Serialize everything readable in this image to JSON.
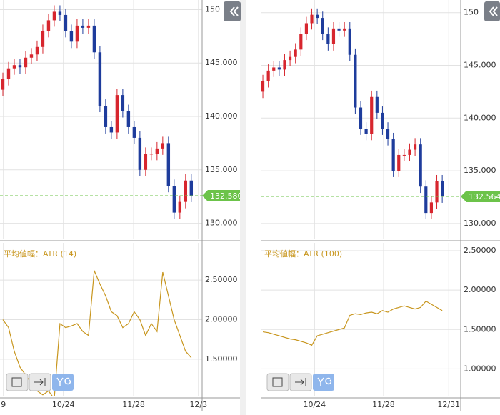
{
  "chart_data": [
    {
      "type": "candlestick",
      "open": [
        142.5,
        143.5,
        144.5,
        144.8,
        144.6,
        145.5,
        145.8,
        146.5,
        148,
        149,
        149.8,
        149.5,
        148,
        147,
        148.5,
        148.3,
        148.5,
        146,
        141,
        139,
        138.5,
        142,
        140.5,
        139,
        138,
        135,
        136.5,
        136.5,
        137,
        137.5,
        133.5,
        131,
        132,
        134
      ],
      "high": [
        144.1,
        145.1,
        145.4,
        145.4,
        146.1,
        146.4,
        147.1,
        148.6,
        149.6,
        150.4,
        150.4,
        150.1,
        148.6,
        149.1,
        149.1,
        149.1,
        149.1,
        146.6,
        141.6,
        139.6,
        142.6,
        142.6,
        141.1,
        139.6,
        138.6,
        137.1,
        137.1,
        137.6,
        138.1,
        138.1,
        134.1,
        132.6,
        134.6,
        134.6
      ],
      "low": [
        141.9,
        142.9,
        143.9,
        144.0,
        144.0,
        144.9,
        145.2,
        145.9,
        147.4,
        148.4,
        148.9,
        147.4,
        146.4,
        146.4,
        147.7,
        147.7,
        145.4,
        140.4,
        138.4,
        137.9,
        137.9,
        139.9,
        138.4,
        137.4,
        134.4,
        134.4,
        135.9,
        135.9,
        136.4,
        132.9,
        130.4,
        130.4,
        131.4,
        131.98
      ],
      "close": [
        143.5,
        144.5,
        144.8,
        144.6,
        145.5,
        145.8,
        146.5,
        148,
        149,
        149.8,
        149.5,
        148,
        147,
        148.5,
        148.3,
        148.5,
        146,
        141,
        139,
        138.5,
        142,
        140.5,
        139,
        138,
        135,
        136.5,
        136.5,
        137,
        137.5,
        133.5,
        131,
        132,
        134,
        132.58
      ],
      "last_label": "132.580",
      "up_color": "#d7262e",
      "down_color": "#1e3c9c",
      "xlim": [
        -0.5,
        34.9
      ],
      "ylim": [
        128.5,
        150.9
      ],
      "yticks": [
        150,
        {
          "value": 145,
          "label": "145.000"
        },
        {
          "value": 140,
          "label": "140.000"
        },
        {
          "value": 135,
          "label": "135.000"
        },
        {
          "value": 130,
          "label": "130.000"
        }
      ],
      "xticks": [
        {
          "value": 0.1,
          "label": "9"
        },
        {
          "value": 10.6,
          "label": "10/24"
        },
        {
          "value": 22.9,
          "label": "11/28"
        },
        {
          "value": 34.25,
          "label": "12/3"
        }
      ],
      "grid": true
    },
    {
      "type": "line",
      "title": "平均値幅：ATR (14)",
      "color": "#c8961e",
      "values": [
        2.0,
        1.9,
        1.6,
        1.4,
        1.3,
        1.2,
        1.1,
        1.05,
        1.1,
        1.0,
        1.95,
        1.9,
        1.92,
        1.95,
        1.85,
        1.8,
        2.62,
        2.45,
        2.3,
        2.1,
        2.05,
        1.9,
        1.95,
        2.1,
        2.0,
        1.8,
        1.95,
        1.85,
        2.6,
        2.3,
        2.0,
        1.8,
        1.6,
        1.52
      ],
      "xlim": [
        -0.5,
        34.9
      ],
      "ylim": [
        1.03,
        2.97
      ],
      "yticks": [
        {
          "value": 2.5,
          "label": "2.50000"
        },
        {
          "value": 2.0,
          "label": "2.00000"
        },
        {
          "value": 1.5,
          "label": "1.50000"
        }
      ]
    },
    {
      "type": "candlestick",
      "open": [
        142.5,
        143.5,
        144.5,
        144.8,
        144.6,
        145.5,
        145.8,
        146.5,
        148,
        149,
        149.8,
        149.5,
        148,
        147,
        148.5,
        148.3,
        148.5,
        146,
        141,
        139,
        138.5,
        142,
        140.5,
        139,
        138,
        135,
        136.5,
        136.5,
        137,
        137.5,
        133.5,
        131,
        132,
        134
      ],
      "high": [
        144.1,
        145.1,
        145.4,
        145.4,
        146.1,
        146.4,
        147.1,
        148.6,
        149.6,
        150.4,
        150.4,
        150.1,
        148.6,
        149.1,
        149.1,
        149.1,
        149.1,
        146.6,
        141.6,
        139.6,
        142.6,
        142.6,
        141.1,
        139.6,
        138.6,
        137.1,
        137.1,
        137.6,
        138.1,
        138.1,
        134.1,
        132.6,
        134.6,
        134.6
      ],
      "low": [
        141.9,
        142.9,
        143.9,
        144.0,
        144.0,
        144.9,
        145.2,
        145.9,
        147.4,
        148.4,
        148.9,
        147.4,
        146.4,
        146.4,
        147.7,
        147.7,
        145.4,
        140.4,
        138.4,
        137.9,
        137.9,
        139.9,
        138.4,
        137.4,
        134.4,
        134.4,
        135.9,
        135.9,
        136.4,
        132.9,
        130.4,
        130.4,
        131.4,
        131.96
      ],
      "close": [
        143.5,
        144.5,
        144.8,
        144.6,
        145.5,
        145.8,
        146.5,
        148,
        149,
        149.8,
        149.5,
        148,
        147,
        148.5,
        148.3,
        148.5,
        146,
        141,
        139,
        138.5,
        142,
        140.5,
        139,
        138,
        135,
        136.5,
        136.5,
        137,
        137.5,
        133.5,
        131,
        132,
        134,
        132.564
      ],
      "last_label": "132.564",
      "up_color": "#d7262e",
      "down_color": "#1e3c9c",
      "xlim": [
        -0.4,
        36.4
      ],
      "ylim": [
        128.5,
        151.2
      ],
      "yticks": [
        150,
        {
          "value": 145,
          "label": "145.000"
        },
        {
          "value": 140,
          "label": "140.000"
        },
        {
          "value": 135,
          "label": "135.000"
        },
        {
          "value": 130,
          "label": "130.000"
        }
      ],
      "xticks": [
        {
          "value": 9.5,
          "label": "10/24"
        },
        {
          "value": 22.2,
          "label": "11/28"
        },
        {
          "value": 34.2,
          "label": "12/31"
        }
      ],
      "grid": true
    },
    {
      "type": "line",
      "title": "平均値幅：ATR (100)",
      "color": "#c8961e",
      "values": [
        1.47,
        1.46,
        1.44,
        1.42,
        1.4,
        1.38,
        1.37,
        1.35,
        1.33,
        1.3,
        1.42,
        1.44,
        1.46,
        1.48,
        1.5,
        1.52,
        1.68,
        1.7,
        1.69,
        1.71,
        1.72,
        1.7,
        1.74,
        1.72,
        1.76,
        1.78,
        1.8,
        1.78,
        1.76,
        1.78,
        1.86,
        1.82,
        1.78,
        1.74
      ],
      "xlim": [
        -0.4,
        36.4
      ],
      "ylim": [
        0.65,
        2.6
      ],
      "yticks": [
        {
          "value": 2.5,
          "label": "2.50000"
        },
        {
          "value": 2.0,
          "label": "2.00000"
        },
        {
          "value": 1.5,
          "label": "1.50000"
        },
        {
          "value": 1.0,
          "label": "1.00000"
        }
      ]
    }
  ]
}
